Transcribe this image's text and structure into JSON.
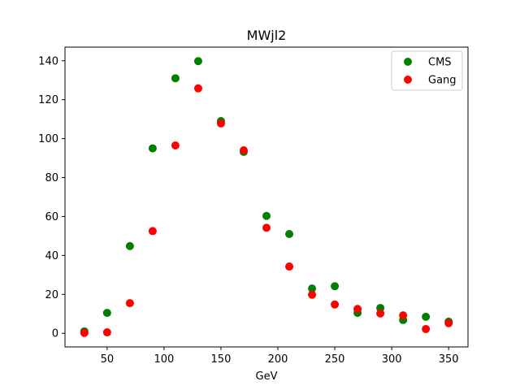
{
  "chart_data": {
    "type": "scatter",
    "title": "MWjl2",
    "xlabel": "GeV",
    "ylabel": "",
    "xlim": [
      13,
      367
    ],
    "ylim": [
      -7,
      147
    ],
    "xticks": [
      50,
      100,
      150,
      200,
      250,
      300,
      350
    ],
    "yticks": [
      0,
      20,
      40,
      60,
      80,
      100,
      120,
      140
    ],
    "grid": false,
    "legend_position": "top-right",
    "x": [
      30,
      50,
      70,
      90,
      110,
      130,
      150,
      170,
      190,
      210,
      230,
      250,
      270,
      290,
      310,
      330,
      350
    ],
    "series": [
      {
        "name": "CMS",
        "color": "#008000",
        "values": [
          1.0,
          10.5,
          44.8,
          95.0,
          131.0,
          139.8,
          109.0,
          93.2,
          60.3,
          51.0,
          23.0,
          24.2,
          10.5,
          13.0,
          6.8,
          8.5,
          6.0
        ]
      },
      {
        "name": "Gang",
        "color": "#ff0000",
        "values": [
          0.2,
          0.5,
          15.5,
          52.5,
          96.5,
          125.8,
          107.8,
          94.0,
          54.2,
          34.3,
          19.8,
          14.8,
          12.5,
          10.2,
          9.2,
          2.2,
          5.2
        ]
      }
    ]
  }
}
